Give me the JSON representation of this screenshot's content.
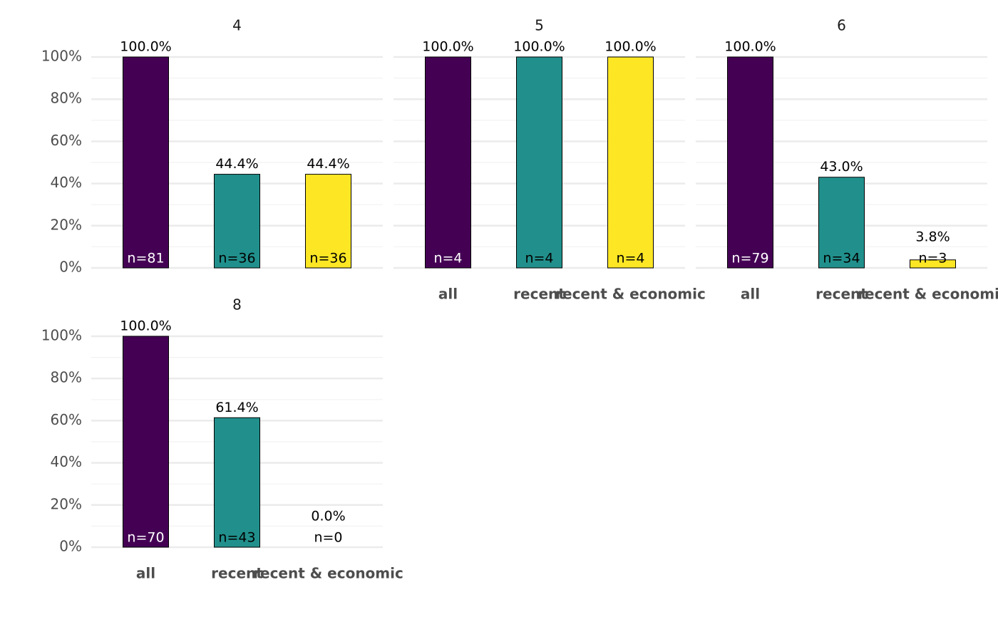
{
  "chart_data": [
    {
      "type": "bar",
      "title": "4",
      "categories": [
        "all",
        "recent",
        "recent & economic"
      ],
      "values": [
        100,
        44.4,
        44.4
      ],
      "value_labels": [
        "100.0%",
        "44.4%",
        "44.4%"
      ],
      "count_labels": [
        "n=81",
        "n=36",
        "n=36"
      ],
      "colors": [
        "#440154",
        "#21908C",
        "#FDE725"
      ],
      "ylim": [
        0,
        100
      ],
      "yticks": [
        {
          "value": 0,
          "label": "0%"
        },
        {
          "value": 20,
          "label": "20%"
        },
        {
          "value": 40,
          "label": "40%"
        },
        {
          "value": 60,
          "label": "60%"
        },
        {
          "value": 80,
          "label": "80%"
        },
        {
          "value": 100,
          "label": "100%"
        }
      ],
      "minor_yticks": [
        10,
        30,
        50,
        70,
        90
      ],
      "grid": true,
      "show_y_labels": true,
      "show_x_labels": false
    },
    {
      "type": "bar",
      "title": "5",
      "categories": [
        "all",
        "recent",
        "recent & economic"
      ],
      "values": [
        100,
        100,
        100
      ],
      "value_labels": [
        "100.0%",
        "100.0%",
        "100.0%"
      ],
      "count_labels": [
        "n=4",
        "n=4",
        "n=4"
      ],
      "colors": [
        "#440154",
        "#21908C",
        "#FDE725"
      ],
      "ylim": [
        0,
        100
      ],
      "yticks": [
        {
          "value": 0,
          "label": "0%"
        },
        {
          "value": 20,
          "label": "20%"
        },
        {
          "value": 40,
          "label": "40%"
        },
        {
          "value": 60,
          "label": "60%"
        },
        {
          "value": 80,
          "label": "80%"
        },
        {
          "value": 100,
          "label": "100%"
        }
      ],
      "minor_yticks": [
        10,
        30,
        50,
        70,
        90
      ],
      "grid": true,
      "show_y_labels": false,
      "show_x_labels": true
    },
    {
      "type": "bar",
      "title": "6",
      "categories": [
        "all",
        "recent",
        "recent & economic"
      ],
      "values": [
        100,
        43.0,
        3.8
      ],
      "value_labels": [
        "100.0%",
        "43.0%",
        "3.8%"
      ],
      "count_labels": [
        "n=79",
        "n=34",
        "n=3"
      ],
      "colors": [
        "#440154",
        "#21908C",
        "#FDE725"
      ],
      "ylim": [
        0,
        100
      ],
      "yticks": [
        {
          "value": 0,
          "label": "0%"
        },
        {
          "value": 20,
          "label": "20%"
        },
        {
          "value": 40,
          "label": "40%"
        },
        {
          "value": 60,
          "label": "60%"
        },
        {
          "value": 80,
          "label": "80%"
        },
        {
          "value": 100,
          "label": "100%"
        }
      ],
      "minor_yticks": [
        10,
        30,
        50,
        70,
        90
      ],
      "grid": true,
      "show_y_labels": false,
      "show_x_labels": true
    },
    {
      "type": "bar",
      "title": "8",
      "categories": [
        "all",
        "recent",
        "recent & economic"
      ],
      "values": [
        100,
        61.4,
        0.0
      ],
      "value_labels": [
        "100.0%",
        "61.4%",
        "0.0%"
      ],
      "count_labels": [
        "n=70",
        "n=43",
        "n=0"
      ],
      "colors": [
        "#440154",
        "#21908C",
        "#FDE725"
      ],
      "ylim": [
        0,
        100
      ],
      "yticks": [
        {
          "value": 0,
          "label": "0%"
        },
        {
          "value": 20,
          "label": "20%"
        },
        {
          "value": 40,
          "label": "40%"
        },
        {
          "value": 60,
          "label": "60%"
        },
        {
          "value": 80,
          "label": "80%"
        },
        {
          "value": 100,
          "label": "100%"
        }
      ],
      "minor_yticks": [
        10,
        30,
        50,
        70,
        90
      ],
      "grid": true,
      "show_y_labels": true,
      "show_x_labels": true
    }
  ]
}
